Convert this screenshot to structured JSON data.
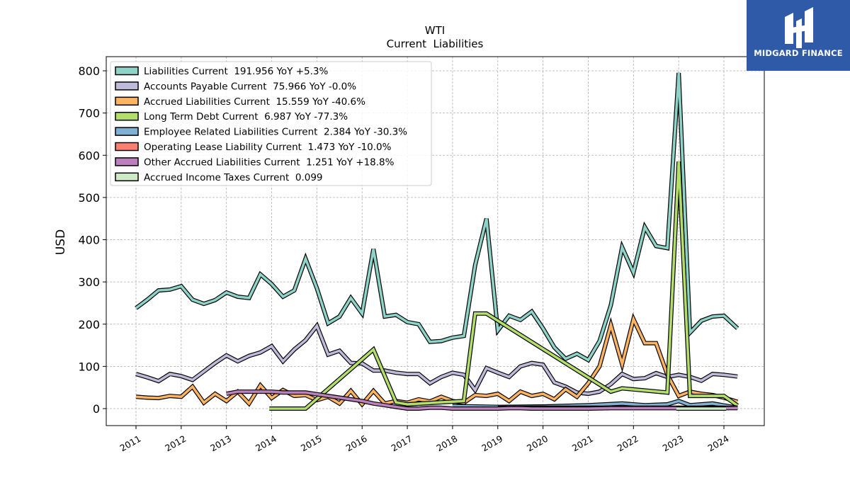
{
  "brand": {
    "name": "MIDGARD FINANCE",
    "logo_icon": "midgard-logo-icon",
    "color": "#2f5aa8"
  },
  "chart_data": {
    "type": "line",
    "title": "WTI",
    "subtitle": "Current  Liabilities",
    "ylabel": "USD",
    "xlabel": "",
    "ylim": [
      -40,
      830
    ],
    "xlim": [
      2010.35,
      2024.9
    ],
    "yticks": [
      0,
      100,
      200,
      300,
      400,
      500,
      600,
      700,
      800
    ],
    "xticks": [
      "2011",
      "2012",
      "2013",
      "2014",
      "2015",
      "2016",
      "2017",
      "2018",
      "2019",
      "2020",
      "2021",
      "2022",
      "2023",
      "2024"
    ],
    "grid": true,
    "legend_position": "top-left",
    "series": [
      {
        "name": "Liabilities Current  191.956 YoY +5.3%",
        "color": "#8dd3c7",
        "points": [
          [
            2011.0,
            238
          ],
          [
            2011.25,
            258
          ],
          [
            2011.5,
            280
          ],
          [
            2011.75,
            282
          ],
          [
            2012.0,
            290
          ],
          [
            2012.25,
            258
          ],
          [
            2012.5,
            248
          ],
          [
            2012.75,
            257
          ],
          [
            2013.0,
            275
          ],
          [
            2013.25,
            265
          ],
          [
            2013.5,
            262
          ],
          [
            2013.75,
            318
          ],
          [
            2014.0,
            295
          ],
          [
            2014.25,
            265
          ],
          [
            2014.5,
            280
          ],
          [
            2014.75,
            355
          ],
          [
            2015.0,
            285
          ],
          [
            2015.25,
            202
          ],
          [
            2015.5,
            218
          ],
          [
            2015.75,
            262
          ],
          [
            2016.0,
            225
          ],
          [
            2016.25,
            378
          ],
          [
            2016.5,
            218
          ],
          [
            2016.75,
            222
          ],
          [
            2017.0,
            205
          ],
          [
            2017.25,
            200
          ],
          [
            2017.5,
            158
          ],
          [
            2017.75,
            160
          ],
          [
            2018.0,
            168
          ],
          [
            2018.25,
            172
          ],
          [
            2018.5,
            340
          ],
          [
            2018.75,
            450
          ],
          [
            2019.0,
            185
          ],
          [
            2019.25,
            220
          ],
          [
            2019.5,
            210
          ],
          [
            2019.75,
            230
          ],
          [
            2020.0,
            190
          ],
          [
            2020.25,
            145
          ],
          [
            2020.5,
            118
          ],
          [
            2020.75,
            130
          ],
          [
            2021.0,
            115
          ],
          [
            2021.25,
            160
          ],
          [
            2021.5,
            245
          ],
          [
            2021.75,
            382
          ],
          [
            2022.0,
            322
          ],
          [
            2022.25,
            430
          ],
          [
            2022.5,
            385
          ],
          [
            2022.75,
            380
          ],
          [
            2023.0,
            795
          ],
          [
            2023.25,
            180
          ],
          [
            2023.5,
            208
          ],
          [
            2023.75,
            218
          ],
          [
            2024.0,
            220
          ],
          [
            2024.3,
            190
          ]
        ]
      },
      {
        "name": "Accounts Payable Current  75.966 YoY -0.0%",
        "color": "#bebada",
        "points": [
          [
            2011.0,
            82
          ],
          [
            2011.25,
            74
          ],
          [
            2011.5,
            65
          ],
          [
            2011.75,
            82
          ],
          [
            2012.0,
            77
          ],
          [
            2012.25,
            68
          ],
          [
            2012.5,
            88
          ],
          [
            2012.75,
            108
          ],
          [
            2013.0,
            126
          ],
          [
            2013.25,
            112
          ],
          [
            2013.5,
            125
          ],
          [
            2013.75,
            133
          ],
          [
            2014.0,
            148
          ],
          [
            2014.25,
            112
          ],
          [
            2014.5,
            140
          ],
          [
            2014.75,
            162
          ],
          [
            2015.0,
            196
          ],
          [
            2015.25,
            128
          ],
          [
            2015.5,
            137
          ],
          [
            2015.75,
            108
          ],
          [
            2016.0,
            107
          ],
          [
            2016.25,
            90
          ],
          [
            2016.5,
            90
          ],
          [
            2016.75,
            85
          ],
          [
            2017.0,
            82
          ],
          [
            2017.25,
            82
          ],
          [
            2017.5,
            60
          ],
          [
            2017.75,
            75
          ],
          [
            2018.0,
            85
          ],
          [
            2018.25,
            80
          ],
          [
            2018.5,
            44
          ],
          [
            2018.75,
            96
          ],
          [
            2019.0,
            85
          ],
          [
            2019.25,
            75
          ],
          [
            2019.5,
            100
          ],
          [
            2019.75,
            108
          ],
          [
            2020.0,
            104
          ],
          [
            2020.25,
            62
          ],
          [
            2020.5,
            52
          ],
          [
            2020.75,
            38
          ],
          [
            2021.0,
            35
          ],
          [
            2021.25,
            40
          ],
          [
            2021.5,
            58
          ],
          [
            2021.75,
            82
          ],
          [
            2022.0,
            70
          ],
          [
            2022.25,
            72
          ],
          [
            2022.5,
            84
          ],
          [
            2022.75,
            75
          ],
          [
            2023.0,
            80
          ],
          [
            2023.25,
            75
          ],
          [
            2023.5,
            66
          ],
          [
            2023.75,
            82
          ],
          [
            2024.0,
            80
          ],
          [
            2024.3,
            76
          ]
        ]
      },
      {
        "name": "Accrued Liabilities Current  15.559 YoY -40.6%",
        "color": "#fdb462",
        "points": [
          [
            2011.0,
            28
          ],
          [
            2011.25,
            26
          ],
          [
            2011.5,
            25
          ],
          [
            2011.75,
            30
          ],
          [
            2012.0,
            28
          ],
          [
            2012.25,
            52
          ],
          [
            2012.5,
            14
          ],
          [
            2012.75,
            35
          ],
          [
            2013.0,
            18
          ],
          [
            2013.25,
            40
          ],
          [
            2013.5,
            12
          ],
          [
            2013.75,
            55
          ],
          [
            2014.0,
            25
          ],
          [
            2014.25,
            44
          ],
          [
            2014.5,
            30
          ],
          [
            2014.75,
            32
          ],
          [
            2015.0,
            20
          ],
          [
            2015.25,
            28
          ],
          [
            2015.5,
            12
          ],
          [
            2015.75,
            42
          ],
          [
            2016.0,
            10
          ],
          [
            2016.25,
            42
          ],
          [
            2016.5,
            12
          ],
          [
            2016.75,
            18
          ],
          [
            2017.0,
            14
          ],
          [
            2017.25,
            22
          ],
          [
            2017.5,
            17
          ],
          [
            2017.75,
            28
          ],
          [
            2018.0,
            18
          ],
          [
            2018.25,
            14
          ],
          [
            2018.5,
            32
          ],
          [
            2018.75,
            30
          ],
          [
            2019.0,
            35
          ],
          [
            2019.25,
            18
          ],
          [
            2019.5,
            40
          ],
          [
            2019.75,
            30
          ],
          [
            2020.0,
            35
          ],
          [
            2020.25,
            22
          ],
          [
            2020.5,
            46
          ],
          [
            2020.75,
            28
          ],
          [
            2021.0,
            60
          ],
          [
            2021.25,
            100
          ],
          [
            2021.5,
            198
          ],
          [
            2021.75,
            105
          ],
          [
            2022.0,
            212
          ],
          [
            2022.25,
            155
          ],
          [
            2022.5,
            155
          ],
          [
            2022.75,
            80
          ],
          [
            2023.0,
            30
          ],
          [
            2023.25,
            40
          ],
          [
            2023.5,
            35
          ],
          [
            2023.75,
            32
          ],
          [
            2024.0,
            26
          ],
          [
            2024.3,
            16
          ]
        ]
      },
      {
        "name": "Long Term Debt Current  6.987 YoY -77.3%",
        "color": "#b3de69",
        "points": [
          [
            2013.95,
            0
          ],
          [
            2014.75,
            0
          ],
          [
            2016.25,
            140
          ],
          [
            2016.75,
            15
          ],
          [
            2017.0,
            10
          ],
          [
            2017.75,
            15
          ],
          [
            2018.25,
            18
          ],
          [
            2018.5,
            225
          ],
          [
            2018.75,
            225
          ],
          [
            2021.5,
            40
          ],
          [
            2021.75,
            48
          ],
          [
            2022.75,
            38
          ],
          [
            2023.0,
            585
          ],
          [
            2023.25,
            30
          ],
          [
            2023.75,
            30
          ],
          [
            2024.0,
            30
          ],
          [
            2024.3,
            7
          ]
        ]
      },
      {
        "name": "Employee Related Liabilities Current  2.384 YoY -30.3%",
        "color": "#80b1d3",
        "points": [
          [
            2018.0,
            6
          ],
          [
            2019.0,
            4
          ],
          [
            2020.0,
            5
          ],
          [
            2021.0,
            8
          ],
          [
            2021.75,
            12
          ],
          [
            2022.25,
            8
          ],
          [
            2022.75,
            10
          ],
          [
            2023.0,
            18
          ],
          [
            2023.25,
            8
          ],
          [
            2023.75,
            12
          ],
          [
            2024.3,
            2
          ]
        ]
      },
      {
        "name": "Operating Lease Liability Current  1.473 YoY -10.0%",
        "color": "#fb8072",
        "points": [
          [
            2019.0,
            2
          ],
          [
            2020.0,
            2
          ],
          [
            2021.0,
            2
          ],
          [
            2022.0,
            2
          ],
          [
            2023.0,
            2
          ],
          [
            2024.0,
            2
          ],
          [
            2024.3,
            1.5
          ]
        ]
      },
      {
        "name": "Other Accrued Liabilities Current  1.251 YoY +18.8%",
        "color": "#bc80bd",
        "points": [
          [
            2013.0,
            35
          ],
          [
            2013.25,
            40
          ],
          [
            2013.5,
            40
          ],
          [
            2013.75,
            40
          ],
          [
            2014.0,
            40
          ],
          [
            2014.25,
            38
          ],
          [
            2014.5,
            38
          ],
          [
            2014.75,
            38
          ],
          [
            2015.0,
            34
          ],
          [
            2015.25,
            30
          ],
          [
            2015.5,
            26
          ],
          [
            2015.75,
            22
          ],
          [
            2016.0,
            18
          ],
          [
            2016.25,
            12
          ],
          [
            2016.5,
            8
          ],
          [
            2016.75,
            4
          ],
          [
            2017.0,
            0
          ],
          [
            2017.25,
            0
          ],
          [
            2017.5,
            2
          ],
          [
            2017.75,
            2
          ],
          [
            2018.0,
            0
          ],
          [
            2018.25,
            0
          ],
          [
            2018.5,
            0
          ],
          [
            2018.75,
            0
          ],
          [
            2019.0,
            0
          ],
          [
            2019.25,
            1
          ],
          [
            2019.5,
            1
          ],
          [
            2019.75,
            0
          ],
          [
            2020.0,
            0
          ],
          [
            2020.5,
            0
          ],
          [
            2021.0,
            0
          ],
          [
            2021.5,
            1
          ],
          [
            2022.0,
            1
          ],
          [
            2022.5,
            1
          ],
          [
            2023.0,
            1
          ],
          [
            2023.5,
            1
          ],
          [
            2024.0,
            1
          ],
          [
            2024.3,
            1.25
          ]
        ]
      },
      {
        "name": "Accrued Income Taxes Current  0.099",
        "color": "#ccebc5",
        "points": [
          [
            2022.95,
            0
          ],
          [
            2024.05,
            0
          ]
        ]
      }
    ]
  }
}
